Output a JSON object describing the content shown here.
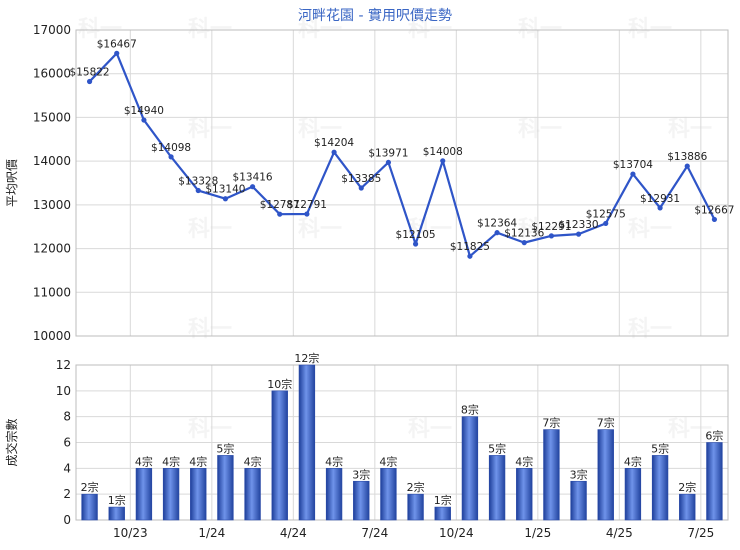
{
  "chart_data": [
    {
      "type": "line",
      "title": "河畔花園 - 實用呎價走勢",
      "ylabel": "平均呎價",
      "ylim": [
        10000,
        17000
      ],
      "yticks": [
        10000,
        11000,
        12000,
        13000,
        14000,
        15000,
        16000,
        17000
      ],
      "x": [
        0,
        1,
        2,
        3,
        4,
        5,
        6,
        7,
        8,
        9,
        10,
        11,
        12,
        13,
        14,
        15,
        16,
        17,
        18,
        19,
        20,
        21,
        22,
        23,
        24
      ],
      "series": [
        {
          "values": [
            15822,
            16467,
            14940,
            14098,
            13328,
            13140,
            13416,
            12787,
            12791,
            14204,
            13385,
            13971,
            12105,
            14008,
            11825,
            12364,
            12136,
            12291,
            12330,
            12575,
            13704,
            12931,
            13886,
            12667
          ],
          "x": [
            0,
            1,
            2,
            3,
            4,
            5,
            6,
            7,
            8,
            9,
            10,
            11,
            12,
            13,
            14,
            15,
            16,
            17,
            18,
            19,
            20,
            21,
            22,
            23
          ],
          "labels": [
            "$15822",
            "$16467",
            "$14940",
            "$14098",
            "$13328",
            "$13140",
            "$13416",
            "$12787",
            "$12791",
            "$14204",
            "$13385",
            "$13971",
            "$12105",
            "$14008",
            "$11825",
            "$12364",
            "$12136",
            "$12291",
            "$12330",
            "$12575",
            "$13704",
            "$12931",
            "$13886",
            "$12667"
          ],
          "color": "#2f55c8"
        }
      ],
      "grid": true
    },
    {
      "type": "bar",
      "ylabel": "成交宗數",
      "ylim": [
        0,
        12
      ],
      "yticks": [
        0,
        2,
        4,
        6,
        8,
        10,
        12
      ],
      "values": [
        2,
        1,
        4,
        4,
        4,
        5,
        4,
        10,
        12,
        4,
        3,
        4,
        2,
        1,
        8,
        5,
        4,
        7,
        3,
        7,
        4,
        5,
        2,
        6
      ],
      "labels": [
        "2宗",
        "1宗",
        "4宗",
        "4宗",
        "4宗",
        "5宗",
        "4宗",
        "10宗",
        "12宗",
        "4宗",
        "3宗",
        "4宗",
        "2宗",
        "1宗",
        "8宗",
        "5宗",
        "4宗",
        "7宗",
        "3宗",
        "7宗",
        "4宗",
        "5宗",
        "2宗",
        "6宗"
      ],
      "xticks": [
        {
          "pos": 2,
          "label": "10/23"
        },
        {
          "pos": 5,
          "label": "1/24"
        },
        {
          "pos": 8,
          "label": "4/24"
        },
        {
          "pos": 11,
          "label": "7/24"
        },
        {
          "pos": 14,
          "label": "10/24"
        },
        {
          "pos": 17,
          "label": "1/25"
        },
        {
          "pos": 20,
          "label": "4/25"
        },
        {
          "pos": 23,
          "label": "7/25"
        }
      ],
      "color": "#3b63cf",
      "grid": true
    }
  ],
  "watermark": "科一"
}
